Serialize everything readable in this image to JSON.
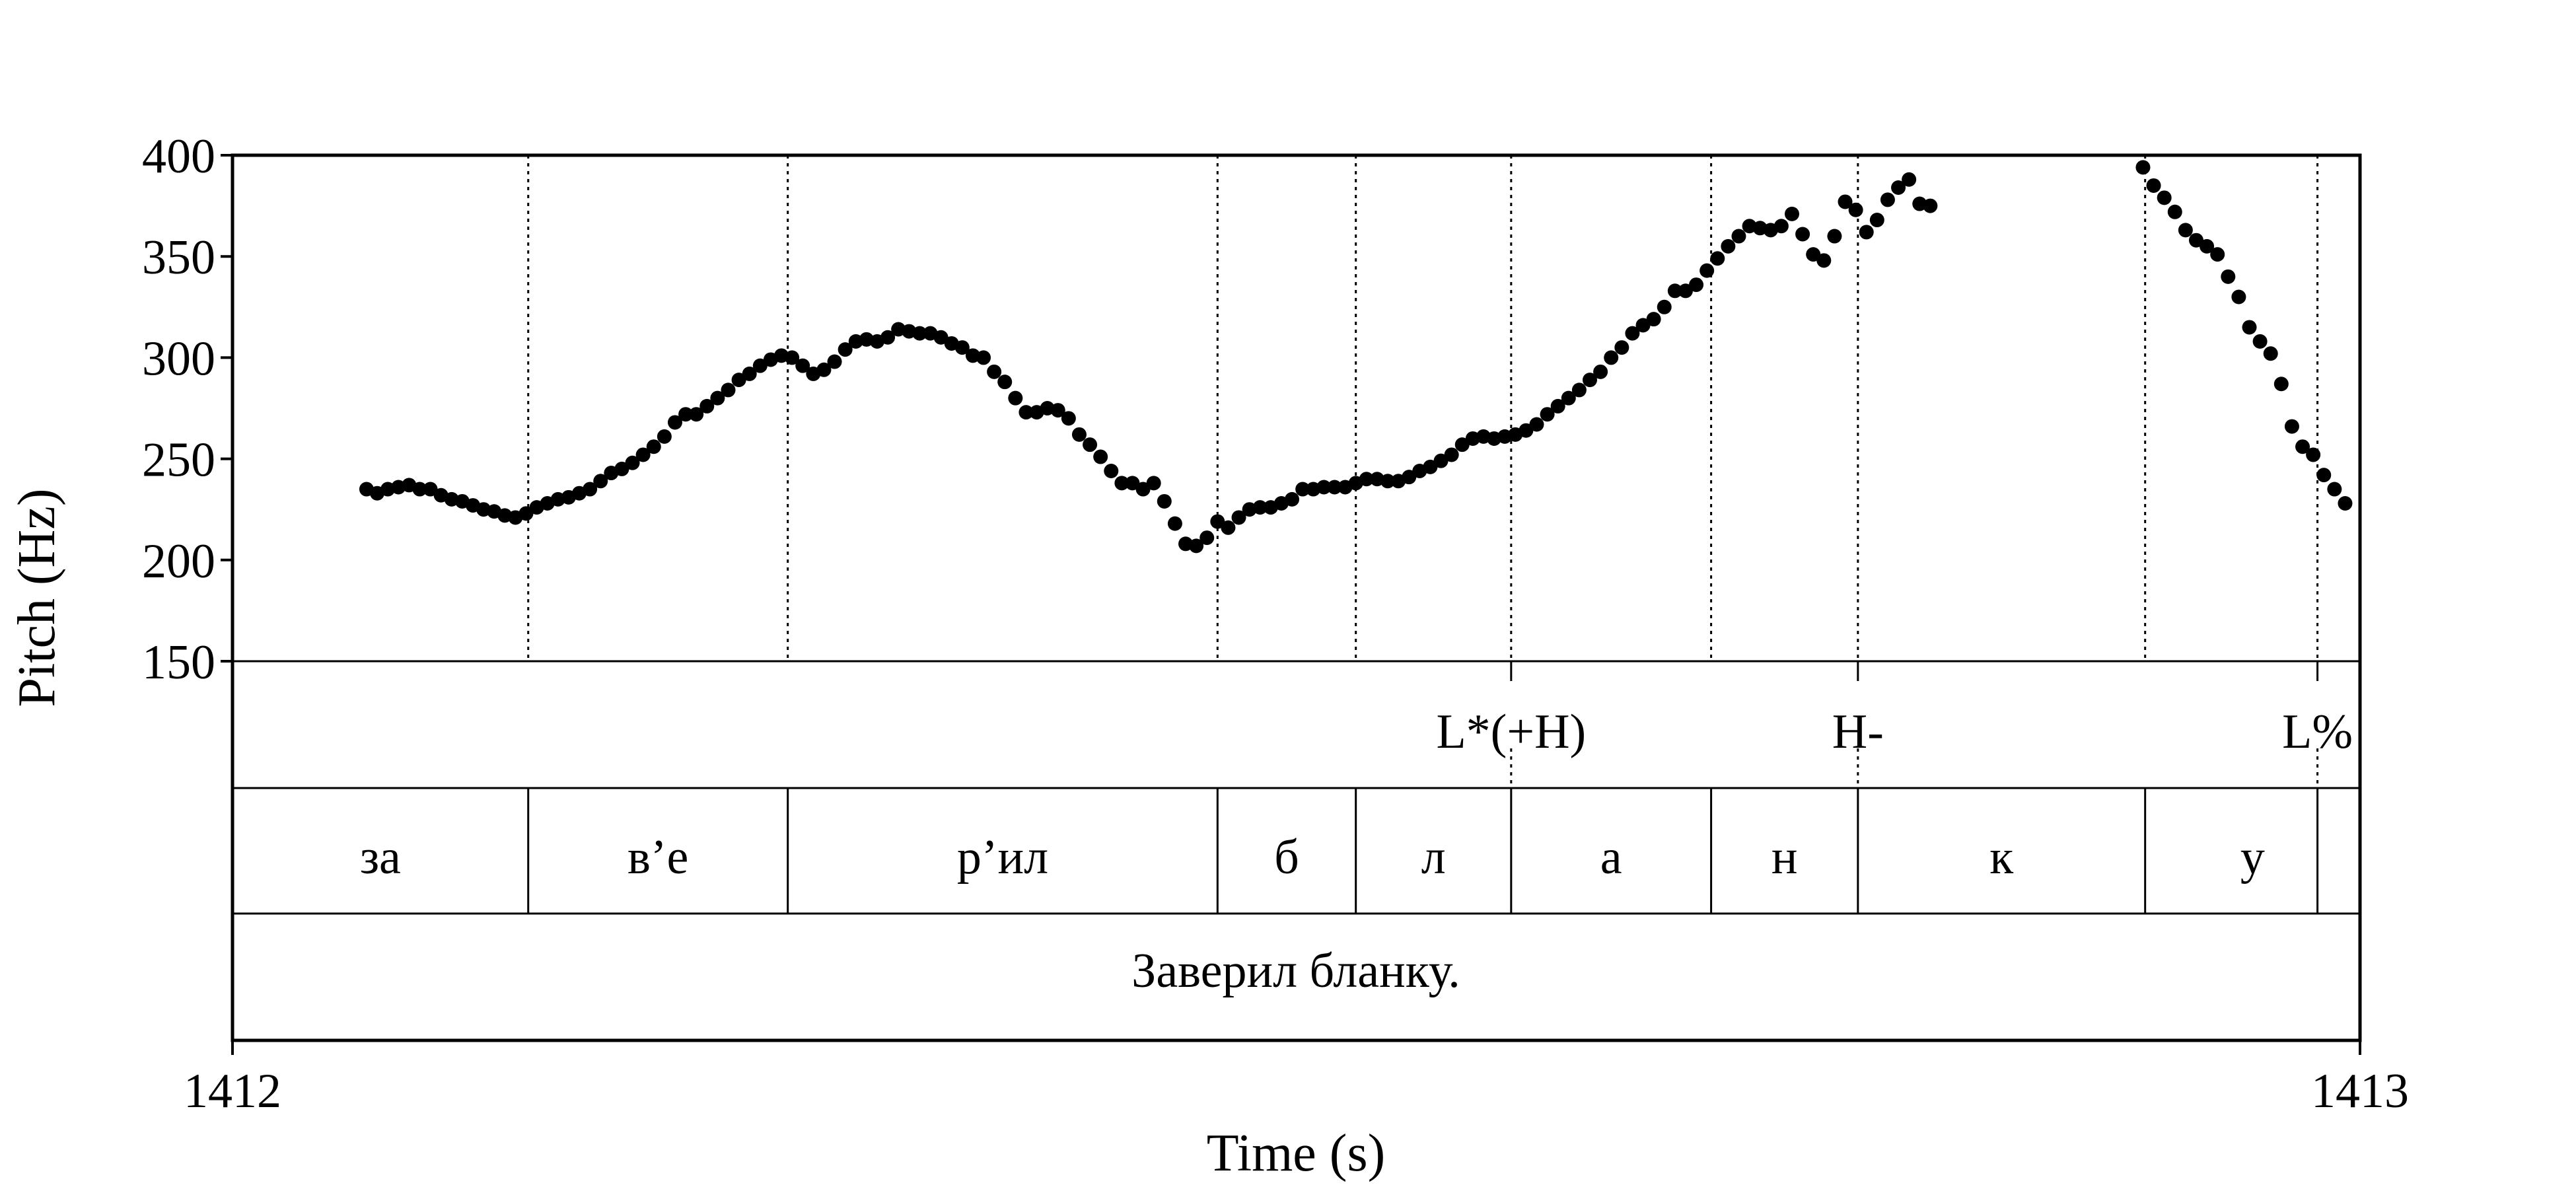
{
  "chart_data": {
    "type": "scatter",
    "xlabel": "Time (s)",
    "ylabel": "Pitch (Hz)",
    "xlim": [
      1412,
      1413
    ],
    "ylim": [
      150,
      400
    ],
    "x_ticks": [
      "1412",
      "1413"
    ],
    "y_ticks": [
      "400",
      "350",
      "300",
      "250",
      "200",
      "150"
    ],
    "grid": false,
    "color": "#000000",
    "segment_boundaries": [
      1412.139,
      1412.261,
      1412.463,
      1412.528,
      1412.601,
      1412.695,
      1412.764,
      1412.899,
      1412.98
    ],
    "tones": [
      {
        "label": "L*(+H)",
        "x": 1412.601
      },
      {
        "label": "H-",
        "x": 1412.764
      },
      {
        "label": "L%",
        "x": 1412.98
      }
    ],
    "segments": [
      {
        "label": "за",
        "start": 1412.0,
        "end": 1412.139
      },
      {
        "label": "в’е",
        "start": 1412.139,
        "end": 1412.261
      },
      {
        "label": "р’ил",
        "start": 1412.261,
        "end": 1412.463
      },
      {
        "label": "б",
        "start": 1412.463,
        "end": 1412.528
      },
      {
        "label": "л",
        "start": 1412.528,
        "end": 1412.601
      },
      {
        "label": "а",
        "start": 1412.601,
        "end": 1412.695
      },
      {
        "label": "н",
        "start": 1412.695,
        "end": 1412.764
      },
      {
        "label": "к",
        "start": 1412.764,
        "end": 1412.899
      },
      {
        "label": "у",
        "start": 1412.899,
        "end": 1413.0
      }
    ],
    "utterance": "Заверил бланку.",
    "points": [
      [
        1412.063,
        235
      ],
      [
        1412.068,
        233
      ],
      [
        1412.073,
        235
      ],
      [
        1412.078,
        236
      ],
      [
        1412.083,
        237
      ],
      [
        1412.088,
        235
      ],
      [
        1412.093,
        235
      ],
      [
        1412.098,
        232
      ],
      [
        1412.103,
        230
      ],
      [
        1412.108,
        229
      ],
      [
        1412.113,
        227
      ],
      [
        1412.118,
        225
      ],
      [
        1412.123,
        224
      ],
      [
        1412.128,
        222
      ],
      [
        1412.133,
        221
      ],
      [
        1412.138,
        223
      ],
      [
        1412.143,
        226
      ],
      [
        1412.148,
        228
      ],
      [
        1412.153,
        230
      ],
      [
        1412.158,
        231
      ],
      [
        1412.163,
        233
      ],
      [
        1412.168,
        235
      ],
      [
        1412.173,
        239
      ],
      [
        1412.178,
        243
      ],
      [
        1412.183,
        245
      ],
      [
        1412.188,
        248
      ],
      [
        1412.193,
        252
      ],
      [
        1412.198,
        256
      ],
      [
        1412.203,
        261
      ],
      [
        1412.208,
        268
      ],
      [
        1412.213,
        272
      ],
      [
        1412.218,
        272
      ],
      [
        1412.223,
        276
      ],
      [
        1412.228,
        280
      ],
      [
        1412.233,
        284
      ],
      [
        1412.238,
        289
      ],
      [
        1412.243,
        292
      ],
      [
        1412.248,
        296
      ],
      [
        1412.253,
        299
      ],
      [
        1412.258,
        301
      ],
      [
        1412.263,
        300
      ],
      [
        1412.268,
        296
      ],
      [
        1412.273,
        292
      ],
      [
        1412.278,
        294
      ],
      [
        1412.283,
        298
      ],
      [
        1412.288,
        304
      ],
      [
        1412.293,
        308
      ],
      [
        1412.298,
        309
      ],
      [
        1412.303,
        308
      ],
      [
        1412.308,
        310
      ],
      [
        1412.313,
        314
      ],
      [
        1412.318,
        313
      ],
      [
        1412.323,
        312
      ],
      [
        1412.328,
        312
      ],
      [
        1412.333,
        310
      ],
      [
        1412.338,
        307
      ],
      [
        1412.343,
        305
      ],
      [
        1412.348,
        301
      ],
      [
        1412.353,
        300
      ],
      [
        1412.358,
        293
      ],
      [
        1412.363,
        288
      ],
      [
        1412.368,
        280
      ],
      [
        1412.373,
        273
      ],
      [
        1412.378,
        273
      ],
      [
        1412.383,
        275
      ],
      [
        1412.388,
        274
      ],
      [
        1412.393,
        270
      ],
      [
        1412.398,
        262
      ],
      [
        1412.403,
        257
      ],
      [
        1412.408,
        251
      ],
      [
        1412.413,
        244
      ],
      [
        1412.418,
        238
      ],
      [
        1412.423,
        238
      ],
      [
        1412.428,
        235
      ],
      [
        1412.433,
        238
      ],
      [
        1412.438,
        229
      ],
      [
        1412.443,
        218
      ],
      [
        1412.448,
        208
      ],
      [
        1412.453,
        207
      ],
      [
        1412.458,
        211
      ],
      [
        1412.463,
        219
      ],
      [
        1412.468,
        216
      ],
      [
        1412.473,
        221
      ],
      [
        1412.478,
        225
      ],
      [
        1412.483,
        226
      ],
      [
        1412.488,
        226
      ],
      [
        1412.493,
        228
      ],
      [
        1412.498,
        230
      ],
      [
        1412.503,
        235
      ],
      [
        1412.508,
        235
      ],
      [
        1412.513,
        236
      ],
      [
        1412.518,
        236
      ],
      [
        1412.523,
        236
      ],
      [
        1412.528,
        238
      ],
      [
        1412.533,
        240
      ],
      [
        1412.538,
        240
      ],
      [
        1412.543,
        239
      ],
      [
        1412.548,
        239
      ],
      [
        1412.553,
        241
      ],
      [
        1412.558,
        244
      ],
      [
        1412.563,
        246
      ],
      [
        1412.568,
        249
      ],
      [
        1412.573,
        252
      ],
      [
        1412.578,
        257
      ],
      [
        1412.583,
        260
      ],
      [
        1412.588,
        261
      ],
      [
        1412.593,
        260
      ],
      [
        1412.598,
        261
      ],
      [
        1412.603,
        262
      ],
      [
        1412.608,
        264
      ],
      [
        1412.613,
        267
      ],
      [
        1412.618,
        272
      ],
      [
        1412.623,
        276
      ],
      [
        1412.628,
        280
      ],
      [
        1412.633,
        284
      ],
      [
        1412.638,
        289
      ],
      [
        1412.643,
        293
      ],
      [
        1412.648,
        300
      ],
      [
        1412.653,
        305
      ],
      [
        1412.658,
        312
      ],
      [
        1412.663,
        316
      ],
      [
        1412.668,
        319
      ],
      [
        1412.673,
        325
      ],
      [
        1412.678,
        333
      ],
      [
        1412.683,
        333
      ],
      [
        1412.688,
        336
      ],
      [
        1412.693,
        343
      ],
      [
        1412.698,
        349
      ],
      [
        1412.703,
        355
      ],
      [
        1412.708,
        360
      ],
      [
        1412.713,
        365
      ],
      [
        1412.718,
        364
      ],
      [
        1412.723,
        363
      ],
      [
        1412.728,
        365
      ],
      [
        1412.733,
        371
      ],
      [
        1412.738,
        361
      ],
      [
        1412.743,
        351
      ],
      [
        1412.748,
        348
      ],
      [
        1412.753,
        360
      ],
      [
        1412.758,
        377
      ],
      [
        1412.763,
        373
      ],
      [
        1412.768,
        362
      ],
      [
        1412.773,
        368
      ],
      [
        1412.778,
        378
      ],
      [
        1412.783,
        384
      ],
      [
        1412.788,
        388
      ],
      [
        1412.793,
        376
      ],
      [
        1412.798,
        375
      ],
      [
        1412.898,
        394
      ],
      [
        1412.903,
        385
      ],
      [
        1412.908,
        379
      ],
      [
        1412.913,
        372
      ],
      [
        1412.918,
        363
      ],
      [
        1412.923,
        358
      ],
      [
        1412.928,
        355
      ],
      [
        1412.933,
        351
      ],
      [
        1412.938,
        340
      ],
      [
        1412.943,
        330
      ],
      [
        1412.948,
        315
      ],
      [
        1412.953,
        308
      ],
      [
        1412.958,
        302
      ],
      [
        1412.963,
        287
      ],
      [
        1412.968,
        266
      ],
      [
        1412.973,
        256
      ],
      [
        1412.978,
        252
      ],
      [
        1412.983,
        242
      ],
      [
        1412.988,
        235
      ],
      [
        1412.993,
        228
      ]
    ]
  }
}
